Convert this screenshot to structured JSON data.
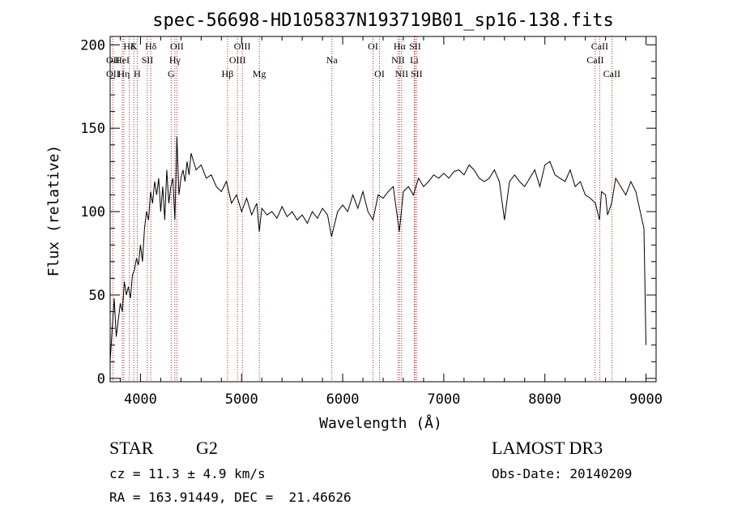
{
  "chart_data": {
    "type": "line",
    "title": "spec-56698-HD105837N193719B01_sp16-138.fits",
    "xlabel": "Wavelength (Å)",
    "ylabel": "Flux (relative)",
    "xlim": [
      3700,
      9100
    ],
    "ylim": [
      -2,
      205
    ],
    "x_ticks": [
      4000,
      5000,
      6000,
      7000,
      8000,
      9000
    ],
    "y_ticks": [
      0,
      50,
      100,
      150,
      200
    ],
    "grid": false,
    "legend": "none",
    "series": [
      {
        "x": [
          3700,
          3720,
          3740,
          3760,
          3780,
          3800,
          3820,
          3840,
          3860,
          3880,
          3900,
          3920,
          3940,
          3960,
          3980,
          4000,
          4020,
          4040,
          4060,
          4080,
          4100,
          4120,
          4140,
          4160,
          4180,
          4200,
          4220,
          4240,
          4260,
          4280,
          4300,
          4320,
          4340,
          4360,
          4380,
          4400,
          4420,
          4440,
          4460,
          4480,
          4500,
          4550,
          4600,
          4650,
          4700,
          4750,
          4800,
          4850,
          4900,
          4950,
          5000,
          5050,
          5100,
          5150,
          5175,
          5200,
          5250,
          5300,
          5350,
          5400,
          5450,
          5500,
          5550,
          5600,
          5650,
          5700,
          5750,
          5800,
          5850,
          5890,
          5950,
          6000,
          6050,
          6100,
          6150,
          6200,
          6250,
          6300,
          6350,
          6400,
          6450,
          6500,
          6560,
          6600,
          6650,
          6700,
          6750,
          6800,
          6850,
          6900,
          6950,
          7000,
          7050,
          7100,
          7150,
          7200,
          7250,
          7300,
          7350,
          7400,
          7450,
          7500,
          7550,
          7600,
          7650,
          7700,
          7750,
          7800,
          7850,
          7900,
          7950,
          8000,
          8050,
          8100,
          8150,
          8200,
          8250,
          8300,
          8350,
          8400,
          8450,
          8500,
          8540,
          8560,
          8600,
          8620,
          8660,
          8700,
          8750,
          8800,
          8850,
          8900,
          8950,
          8980,
          9000
        ],
        "y": [
          10,
          30,
          48,
          25,
          35,
          45,
          40,
          58,
          50,
          55,
          48,
          62,
          65,
          72,
          68,
          80,
          70,
          90,
          100,
          95,
          112,
          105,
          118,
          110,
          120,
          100,
          115,
          95,
          125,
          105,
          115,
          120,
          95,
          145,
          110,
          120,
          125,
          118,
          130,
          122,
          135,
          125,
          128,
          120,
          122,
          115,
          112,
          118,
          105,
          110,
          100,
          108,
          98,
          105,
          88,
          102,
          98,
          100,
          96,
          103,
          97,
          100,
          95,
          98,
          93,
          100,
          96,
          102,
          98,
          85,
          100,
          104,
          100,
          110,
          102,
          112,
          100,
          95,
          110,
          108,
          112,
          115,
          88,
          112,
          115,
          110,
          120,
          115,
          118,
          122,
          120,
          123,
          120,
          124,
          125,
          122,
          128,
          125,
          120,
          118,
          120,
          125,
          118,
          95,
          118,
          122,
          118,
          115,
          120,
          125,
          115,
          128,
          130,
          122,
          120,
          118,
          125,
          115,
          118,
          110,
          108,
          105,
          95,
          112,
          110,
          98,
          105,
          120,
          115,
          110,
          118,
          112,
          98,
          90,
          20
        ]
      }
    ],
    "line_labels": [
      {
        "label": "Hδ",
        "x": 3889,
        "row": 0
      },
      {
        "label": "K",
        "x": 3934,
        "row": 0
      },
      {
        "label": "Hδ",
        "x": 4102,
        "row": 0
      },
      {
        "label": "OII",
        "x": 3727,
        "row": 1
      },
      {
        "label": "HeI",
        "x": 3820,
        "row": 1
      },
      {
        "label": "SII",
        "x": 4068,
        "row": 1
      },
      {
        "label": "OII",
        "x": 3727,
        "row": 2
      },
      {
        "label": "Hη",
        "x": 3835,
        "row": 2
      },
      {
        "label": "H",
        "x": 3968,
        "row": 2
      },
      {
        "label": "OII",
        "x": 4360,
        "row": 0
      },
      {
        "label": "Hγ",
        "x": 4340,
        "row": 1
      },
      {
        "label": "G",
        "x": 4304,
        "row": 2
      },
      {
        "label": "OIII",
        "x": 5007,
        "row": 0
      },
      {
        "label": "OIII",
        "x": 4959,
        "row": 1
      },
      {
        "label": "Hβ",
        "x": 4861,
        "row": 2
      },
      {
        "label": "Mg",
        "x": 5175,
        "row": 2
      },
      {
        "label": "Na",
        "x": 5893,
        "row": 1
      },
      {
        "label": "OI",
        "x": 6300,
        "row": 0
      },
      {
        "label": "OI",
        "x": 6364,
        "row": 2
      },
      {
        "label": "Hα",
        "x": 6563,
        "row": 0
      },
      {
        "label": "SII",
        "x": 6716,
        "row": 0
      },
      {
        "label": "NII",
        "x": 6548,
        "row": 1
      },
      {
        "label": "Li",
        "x": 6708,
        "row": 1
      },
      {
        "label": "NII",
        "x": 6583,
        "row": 2
      },
      {
        "label": "SII",
        "x": 6731,
        "row": 2
      },
      {
        "label": "CaII",
        "x": 8542,
        "row": 0
      },
      {
        "label": "CaII",
        "x": 8498,
        "row": 1
      },
      {
        "label": "CaII",
        "x": 8662,
        "row": 2
      }
    ],
    "line_positions": [
      3727,
      3820,
      3835,
      3889,
      3934,
      3968,
      4068,
      4102,
      4304,
      4340,
      4360,
      4861,
      4959,
      5007,
      5175,
      5893,
      6300,
      6364,
      6548,
      6563,
      6583,
      6708,
      6716,
      6731,
      8498,
      8542,
      8662
    ]
  },
  "info": {
    "object_class": "STAR",
    "subclass": "G2",
    "survey": "LAMOST DR3",
    "redshift": "cz = 11.3 ± 4.9 km/s",
    "obs_date": "Obs-Date: 20140209",
    "coordinates": "RA = 163.91449, DEC =  21.46626"
  },
  "colors": {
    "spectrum": "#000000",
    "line_markers": "#b22222",
    "axes": "#000000"
  }
}
